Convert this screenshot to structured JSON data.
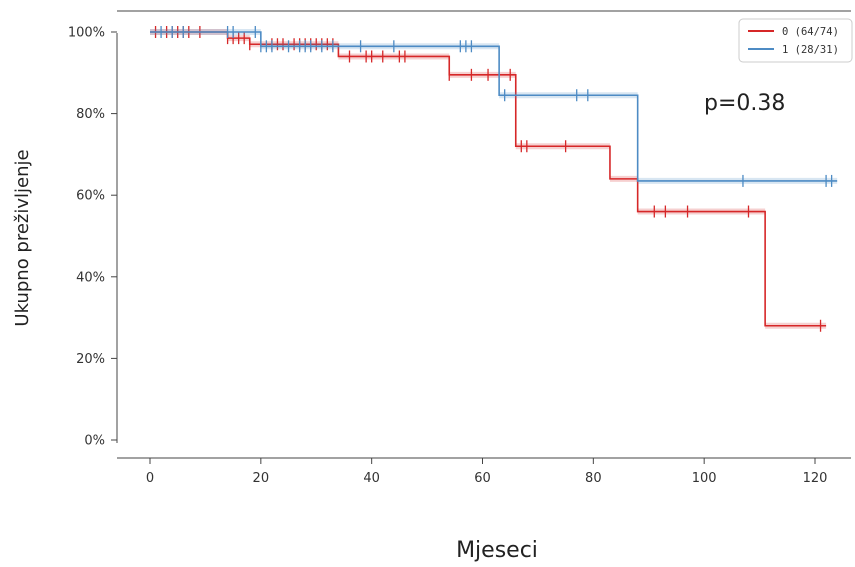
{
  "chart_data": {
    "type": "line",
    "subtype": "kaplan-meier",
    "title": "",
    "xlabel": "Mjeseci",
    "ylabel": "Ukupno preživljenje",
    "xlim": [
      -8,
      126
    ],
    "ylim": [
      0,
      1.04
    ],
    "xticks": [
      0,
      20,
      40,
      60,
      80,
      100,
      120
    ],
    "yticks": [
      0,
      0.2,
      0.4,
      0.6,
      0.8,
      1.0
    ],
    "ytick_labels": [
      "0%",
      "20%",
      "40%",
      "60%",
      "80%",
      "100%"
    ],
    "grid": false,
    "legend_position": "top-right",
    "annotation": "p=0.38",
    "series": [
      {
        "name": "0 (64/74)",
        "color": "#d62728",
        "steps": [
          [
            0,
            1.0
          ],
          [
            14,
            0.985
          ],
          [
            18,
            0.97
          ],
          [
            34,
            0.94
          ],
          [
            54,
            0.895
          ],
          [
            66,
            0.72
          ],
          [
            83,
            0.64
          ],
          [
            88,
            0.56
          ],
          [
            111,
            0.28
          ],
          [
            122,
            0.28
          ]
        ],
        "censored": [
          1,
          3,
          4,
          5,
          6,
          7,
          9,
          14,
          15,
          16,
          17,
          18,
          22,
          23,
          24,
          26,
          27,
          28,
          29,
          30,
          31,
          32,
          33,
          36,
          39,
          40,
          42,
          45,
          46,
          54,
          58,
          61,
          65,
          67,
          68,
          75,
          91,
          93,
          97,
          108,
          121
        ]
      },
      {
        "name": "1 (28/31)",
        "color": "#4d8bc4",
        "steps": [
          [
            0,
            1.0
          ],
          [
            20,
            0.965
          ],
          [
            63,
            0.845
          ],
          [
            88,
            0.635
          ],
          [
            124,
            0.635
          ]
        ],
        "censored": [
          2,
          4,
          6,
          14,
          15,
          19,
          20,
          21,
          22,
          25,
          27,
          28,
          29,
          31,
          33,
          38,
          44,
          56,
          57,
          58,
          64,
          77,
          79,
          107,
          122,
          123
        ]
      }
    ]
  }
}
